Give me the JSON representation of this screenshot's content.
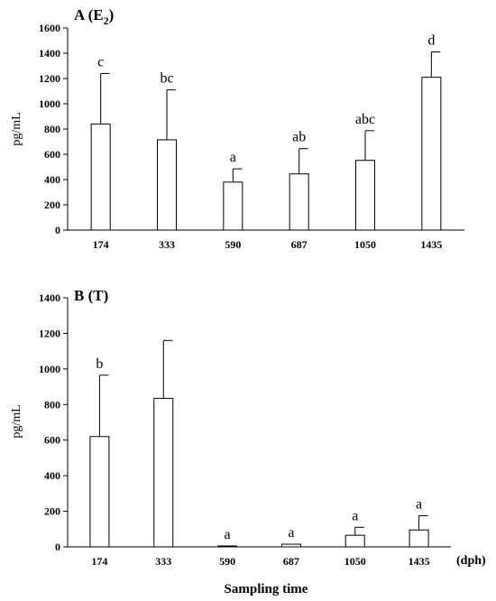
{
  "chart_data": [
    {
      "type": "bar",
      "panel": "A",
      "title": "A (E",
      "title_sub": "2",
      "title_close": ")",
      "ylabel": "pg/mL",
      "ylim": [
        0,
        1600
      ],
      "yticks": [
        0,
        200,
        400,
        600,
        800,
        1000,
        1200,
        1400,
        1600
      ],
      "categories": [
        "174",
        "333",
        "590",
        "687",
        "1050",
        "1435"
      ],
      "values": [
        840,
        715,
        380,
        445,
        552,
        1210
      ],
      "errors": [
        400,
        395,
        105,
        200,
        235,
        200
      ],
      "significance": [
        "c",
        "bc",
        "a",
        "ab",
        "abc",
        "d"
      ]
    },
    {
      "type": "bar",
      "panel": "B",
      "title": "B (T)",
      "ylabel": "pg/mL",
      "ylim": [
        0,
        1400
      ],
      "yticks": [
        0,
        200,
        400,
        600,
        800,
        1000,
        1200,
        1400
      ],
      "categories": [
        "174",
        "333",
        "590",
        "687",
        "1050",
        "1435"
      ],
      "values": [
        620,
        835,
        5,
        15,
        65,
        95
      ],
      "errors": [
        345,
        325,
        0,
        0,
        45,
        80
      ],
      "significance": [
        "b",
        "",
        "a",
        "a",
        "a",
        "a"
      ],
      "x_unit": "(dph)",
      "xlabel": "Sampling time"
    }
  ]
}
